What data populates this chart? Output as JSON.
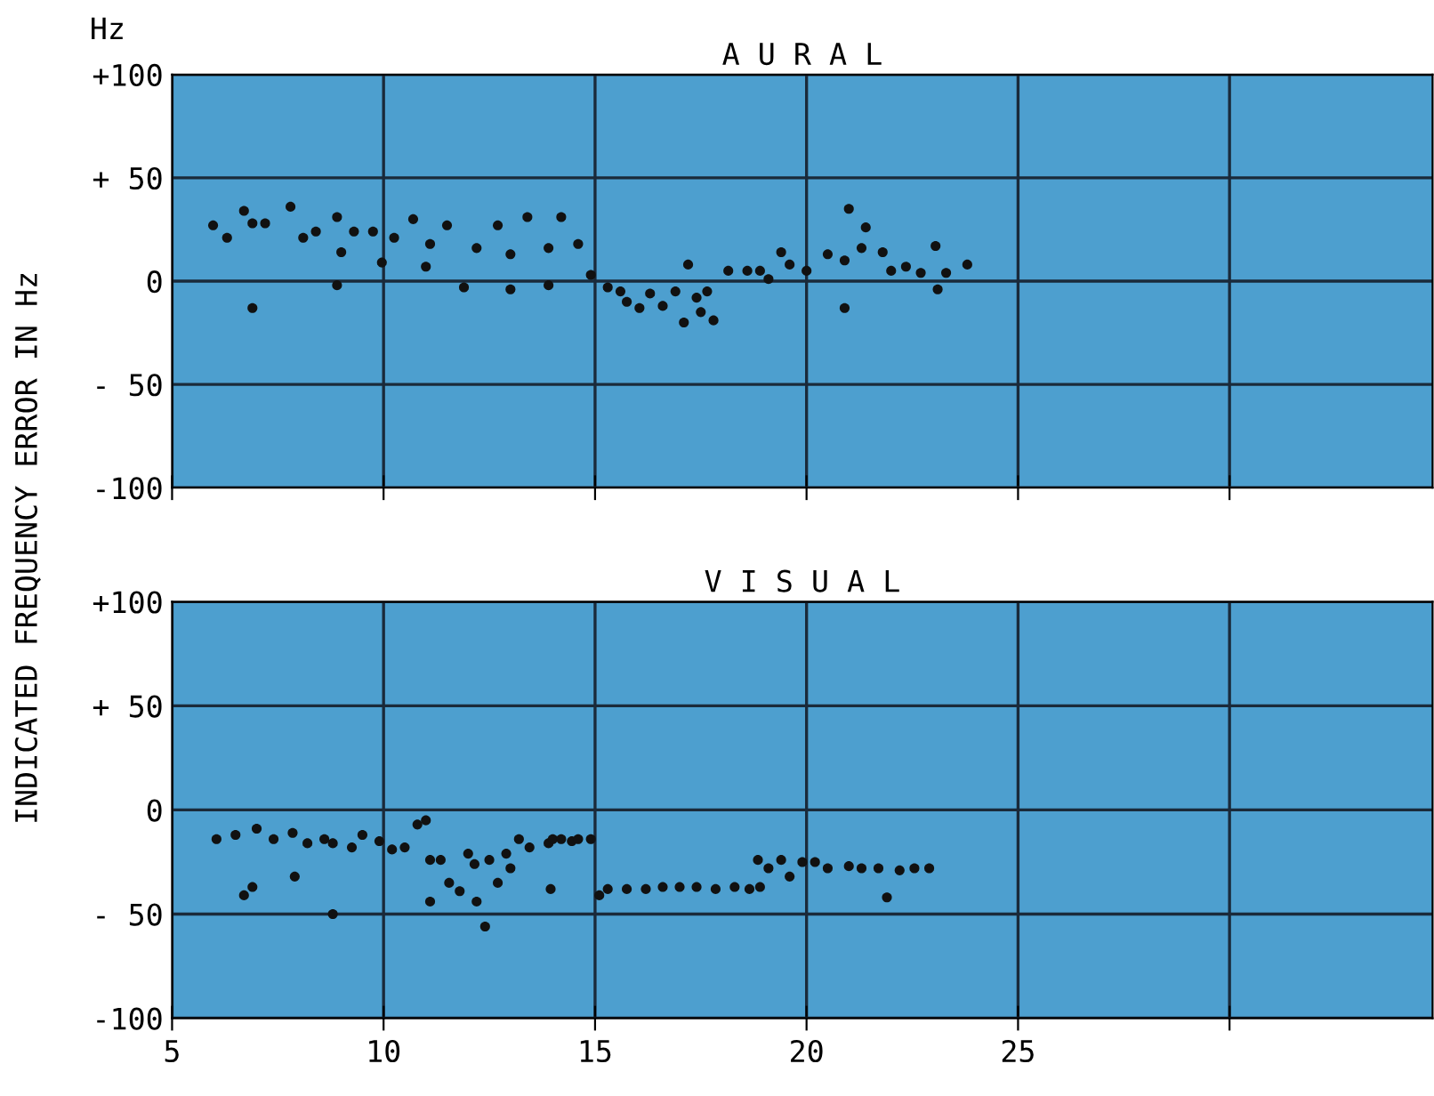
{
  "chart_data": [
    {
      "type": "scatter",
      "title": "A U R A L",
      "ylabel": "INDICATED FREQUENCY ERROR IN Hz",
      "annotations": [
        "Hz"
      ],
      "marker": "circle",
      "grid": true,
      "tick_labels": "y",
      "xlim": [
        5,
        34.8
      ],
      "xticks": [
        5,
        10,
        15,
        20,
        25,
        {
          "value": 30,
          "label": null
        }
      ],
      "ylim": [
        -100,
        100
      ],
      "yticks": [
        {
          "value": -100,
          "label": "-100"
        },
        {
          "value": -50,
          "label": "- 50"
        },
        0,
        {
          "value": 50,
          "label": "+ 50"
        },
        {
          "value": 100,
          "label": "+100"
        }
      ],
      "series": [
        {
          "color": "#111111",
          "x": [
            5.97,
            6.3,
            6.7,
            6.9,
            7.2,
            7.8,
            6.9,
            8.1,
            8.4,
            8.9,
            9.0,
            8.9,
            9.3,
            9.75,
            9.96,
            10.25,
            10.7,
            11.0,
            11.1,
            11.5,
            11.9,
            12.2,
            12.7,
            13.0,
            13.0,
            13.4,
            13.9,
            13.9,
            14.2,
            14.6,
            14.9,
            15.3,
            15.6,
            15.75,
            16.05,
            16.3,
            16.6,
            16.9,
            17.2,
            17.1,
            17.4,
            17.5,
            17.8,
            17.65,
            18.15,
            18.6,
            18.9,
            19.1,
            19.4,
            19.6,
            20.0,
            20.5,
            20.9,
            21.0,
            20.9,
            21.3,
            21.4,
            21.8,
            22.0,
            22.35,
            22.7,
            23.05,
            23.1,
            23.3,
            23.8
          ],
          "values": [
            27,
            21,
            34,
            28,
            28,
            36,
            -13,
            21,
            24,
            31,
            14,
            -2,
            24,
            24,
            9,
            21,
            30,
            7,
            18,
            27,
            -3,
            16,
            27,
            13,
            -4,
            31,
            -2,
            16,
            31,
            18,
            3,
            -3,
            -5,
            -10,
            -13,
            -6,
            -12,
            -5,
            8,
            -20,
            -8,
            -15,
            -19,
            -5,
            5,
            5,
            5,
            1,
            14,
            8,
            5,
            13,
            10,
            35,
            -13,
            16,
            26,
            14,
            5,
            7,
            4,
            17,
            -4,
            4,
            8
          ]
        }
      ]
    },
    {
      "type": "scatter",
      "title": "V I S U A L",
      "marker": "circle",
      "grid": true,
      "xlim": [
        5,
        34.8
      ],
      "xticks": [
        5,
        10,
        15,
        20,
        25,
        {
          "value": 30,
          "label": null
        }
      ],
      "ylim": [
        -100,
        100
      ],
      "yticks": [
        {
          "value": -100,
          "label": "-100"
        },
        {
          "value": -50,
          "label": "- 50"
        },
        0,
        {
          "value": 50,
          "label": "+ 50"
        },
        {
          "value": 100,
          "label": "+100"
        }
      ],
      "series": [
        {
          "color": "#111111",
          "x": [
            6.05,
            6.5,
            7.0,
            7.4,
            7.85,
            8.2,
            8.6,
            8.8,
            9.25,
            9.5,
            9.9,
            10.2,
            10.5,
            10.8,
            11.0,
            6.7,
            6.9,
            7.9,
            8.8,
            11.1,
            11.35,
            11.1,
            11.55,
            11.8,
            12.0,
            12.15,
            12.2,
            12.4,
            12.5,
            12.7,
            12.9,
            13.0,
            13.2,
            13.45,
            13.95,
            13.9,
            14.0,
            14.2,
            14.45,
            14.6,
            14.9,
            15.1,
            15.3,
            15.75,
            16.2,
            16.6,
            17.0,
            17.4,
            17.85,
            18.3,
            18.65,
            18.9,
            18.85,
            19.1,
            19.4,
            19.6,
            19.9,
            20.2,
            20.5,
            21.0,
            21.3,
            21.7,
            21.9,
            22.2,
            22.55,
            22.9
          ],
          "values": [
            -14,
            -12,
            -9,
            -14,
            -11,
            -16,
            -14,
            -16,
            -18,
            -12,
            -15,
            -19,
            -18,
            -7,
            -5,
            -41,
            -37,
            -32,
            -50,
            -24,
            -24,
            -44,
            -35,
            -39,
            -21,
            -26,
            -44,
            -56,
            -24,
            -35,
            -21,
            -28,
            -14,
            -18,
            -38,
            -16,
            -14,
            -14,
            -15,
            -14,
            -14,
            -41,
            -38,
            -38,
            -38,
            -37,
            -37,
            -37,
            -38,
            -37,
            -38,
            -37,
            -24,
            -28,
            -24,
            -32,
            -25,
            -25,
            -28,
            -27,
            -28,
            -28,
            -42,
            -29,
            -28,
            -28
          ]
        }
      ]
    }
  ]
}
